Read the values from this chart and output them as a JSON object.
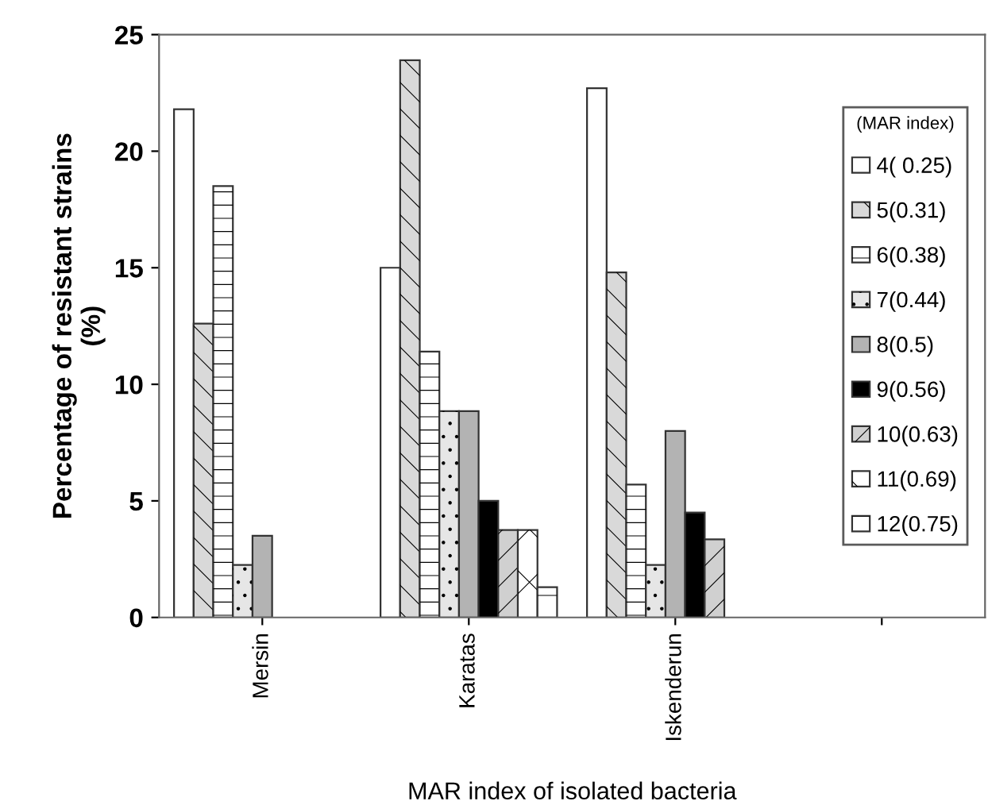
{
  "chart_data": {
    "type": "bar",
    "xlabel": "MAR index of isolated bacteria",
    "ylabel": "Percentage of resistant strains\n(%)",
    "legend_title": "(MAR index)",
    "legend": "right",
    "categories": [
      "Mersin",
      "Karatas",
      "Iskenderun",
      null
    ],
    "ylim": [
      0,
      25
    ],
    "yticks": [
      0,
      5,
      10,
      15,
      20,
      25
    ],
    "grid": false,
    "series": [
      {
        "name": "4( 0.25)",
        "color": "#ffffff",
        "values": [
          21.8,
          15.0,
          22.7,
          null
        ]
      },
      {
        "name": "5(0.31)",
        "color": "#d9d9d9",
        "values": [
          12.6,
          23.9,
          14.8,
          null
        ]
      },
      {
        "name": "6(0.38)",
        "color": "#ffffff",
        "values": [
          18.5,
          11.4,
          5.7,
          null
        ]
      },
      {
        "name": "7(0.44)",
        "color": "#e6e6e6",
        "values": [
          2.25,
          8.85,
          2.25,
          null
        ]
      },
      {
        "name": "8(0.5)",
        "color": "#b3b3b3",
        "values": [
          3.5,
          8.85,
          8.0,
          null
        ]
      },
      {
        "name": "9(0.56)",
        "color": "#000000",
        "values": [
          null,
          5.0,
          4.5,
          null
        ]
      },
      {
        "name": "10(0.63)",
        "color": "#d0d0d0",
        "values": [
          null,
          3.75,
          3.35,
          null
        ]
      },
      {
        "name": "11(0.69)",
        "color": "#ffffff",
        "values": [
          null,
          3.75,
          null,
          null
        ]
      },
      {
        "name": "12(0.75)",
        "color": "#ffffff",
        "values": [
          null,
          1.3,
          null,
          null
        ]
      }
    ]
  }
}
